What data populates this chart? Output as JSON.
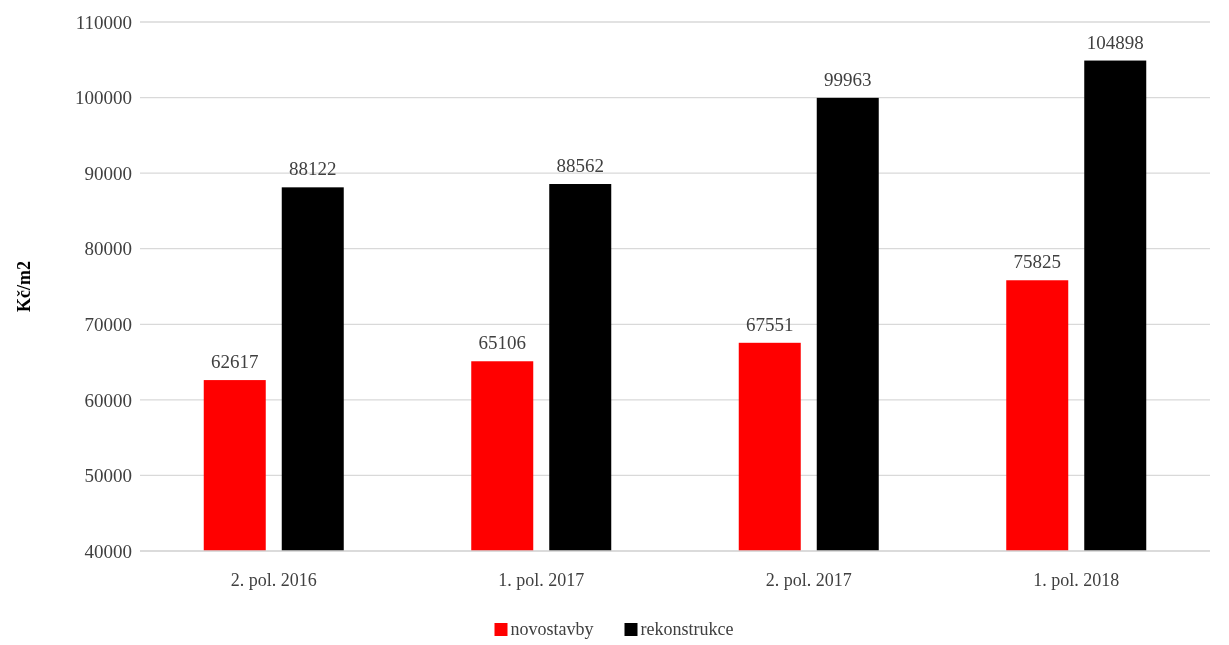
{
  "chart_data": {
    "type": "bar",
    "ylabel": "Kč/m2",
    "categories": [
      "2. pol. 2016",
      "1. pol. 2017",
      "2. pol. 2017",
      "1. pol. 2018"
    ],
    "series": [
      {
        "name": "novostavby",
        "color": "#ff0000",
        "values": [
          62617,
          65106,
          67551,
          75825
        ]
      },
      {
        "name": "rekonstrukce",
        "color": "#000000",
        "values": [
          88122,
          88562,
          99963,
          104898
        ]
      }
    ],
    "ylim": [
      40000,
      110000
    ],
    "yticks": [
      40000,
      50000,
      60000,
      70000,
      80000,
      90000,
      100000,
      110000
    ],
    "grid": "y",
    "legend": "bottom",
    "data_labels": true
  }
}
